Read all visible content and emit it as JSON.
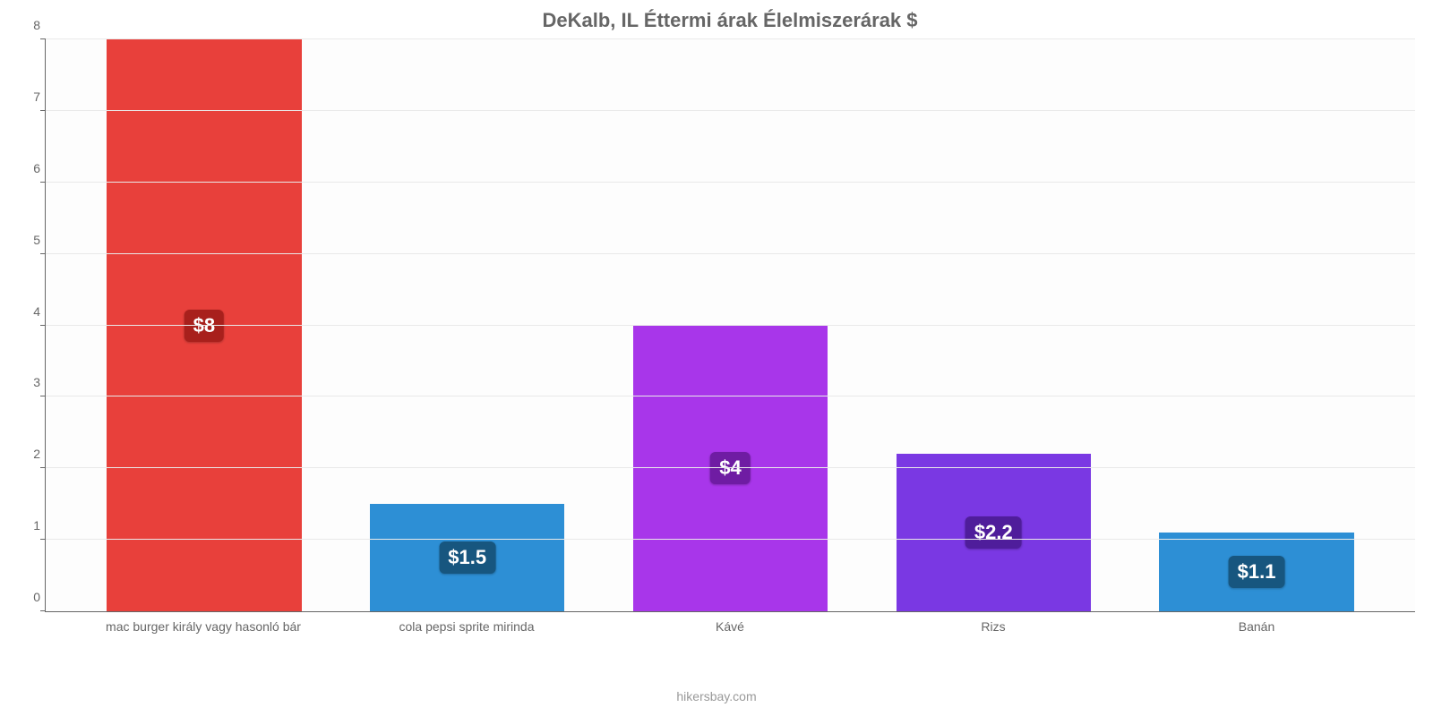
{
  "chart": {
    "type": "bar",
    "title": "DeKalb, IL Éttermi árak Élelmiszerárak $",
    "title_fontsize": 22,
    "title_color": "#666666",
    "caption": "hikersbay.com",
    "caption_color": "#999999",
    "background_color": "#fdfdfd",
    "grid_color": "#e9e9e9",
    "axis_color": "#666666",
    "tick_label_color": "#666666",
    "tick_label_fontsize": 14,
    "x_label_fontsize": 14,
    "ylim": [
      0,
      8
    ],
    "ytick_step": 1,
    "yticks": [
      0,
      1,
      2,
      3,
      4,
      5,
      6,
      7,
      8
    ],
    "currency": "$",
    "bar_width_pct": 74,
    "value_label_fontsize": 22,
    "value_label_color": "#ffffff",
    "value_label_radius": 6,
    "categories": [
      "mac burger király vagy hasonló bár",
      "cola pepsi sprite mirinda",
      "Kávé",
      "Rizs",
      "Banán"
    ],
    "values": [
      8,
      1.5,
      4,
      2.2,
      1.1
    ],
    "value_labels": [
      "$8",
      "$1.5",
      "$4",
      "$2.2",
      "$1.1"
    ],
    "bar_colors": [
      "#e8403b",
      "#2d8fd5",
      "#a836ea",
      "#7a38e3",
      "#2d8fd5"
    ],
    "value_label_bg": [
      "#a8201c",
      "#17567f",
      "#6f1ca3",
      "#4f1d9b",
      "#17567f"
    ]
  }
}
